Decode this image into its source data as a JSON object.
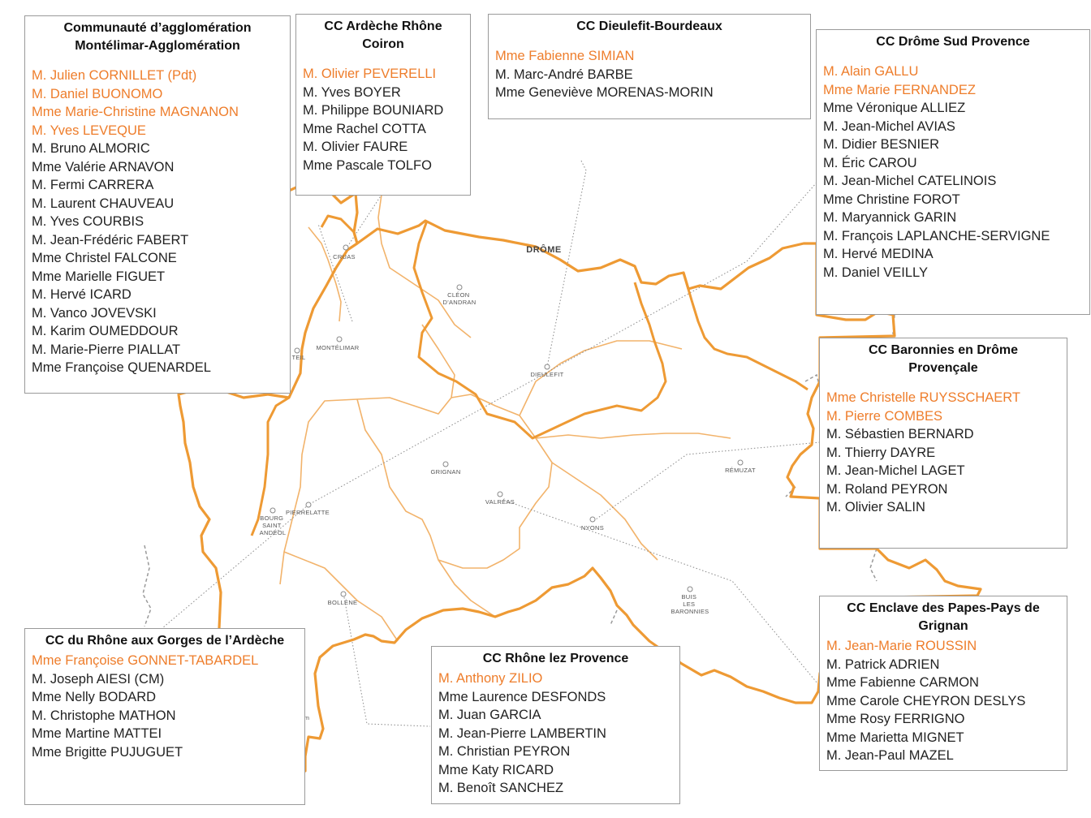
{
  "colors": {
    "border_orange": "#ee9a34",
    "internal_orange": "#f2b36b",
    "lead_text": "#ee7d2b",
    "dotted_gray": "#9a9a9a"
  },
  "map": {
    "region_label": "DRÔME",
    "towns": [
      {
        "name": "CRUAS"
      },
      {
        "name": "CLÉON D'ANDRAN"
      },
      {
        "name": "MONTÉLIMAR"
      },
      {
        "name": "TEIL"
      },
      {
        "name": "DIEULEFIT"
      },
      {
        "name": "GRIGNAN"
      },
      {
        "name": "RÉMUZAT"
      },
      {
        "name": "VALRÉAS"
      },
      {
        "name": "PIERRELATTE"
      },
      {
        "name": "BOURG SAINT ANDÉOL"
      },
      {
        "name": "NYONS"
      },
      {
        "name": "BOLLÈNE"
      },
      {
        "name": "BUIS LES BARONNIES"
      }
    ],
    "scale_unit": "km"
  },
  "boxes": [
    {
      "id": "montelimar",
      "title": "Communauté d’agglomération Montélimar-Agglomération",
      "members": [
        {
          "name": "M. Julien CORNILLET (Pdt)",
          "lead": true
        },
        {
          "name": "M. Daniel BUONOMO",
          "lead": true
        },
        {
          "name": "Mme Marie-Christine MAGNANON",
          "lead": true
        },
        {
          "name": "M. Yves LEVEQUE",
          "lead": true
        },
        {
          "name": "M. Bruno ALMORIC",
          "lead": false
        },
        {
          "name": "Mme Valérie ARNAVON",
          "lead": false
        },
        {
          "name": "M. Fermi CARRERA",
          "lead": false
        },
        {
          "name": "M. Laurent CHAUVEAU",
          "lead": false
        },
        {
          "name": "M. Yves COURBIS",
          "lead": false
        },
        {
          "name": "M. Jean-Frédéric FABERT",
          "lead": false
        },
        {
          "name": "Mme Christel FALCONE",
          "lead": false
        },
        {
          "name": "Mme Marielle FIGUET",
          "lead": false
        },
        {
          "name": "M. Hervé ICARD",
          "lead": false
        },
        {
          "name": "M. Vanco JOVEVSKI",
          "lead": false
        },
        {
          "name": "M. Karim OUMEDDOUR",
          "lead": false
        },
        {
          "name": "M. Marie-Pierre PIALLAT",
          "lead": false
        },
        {
          "name": "Mme Françoise QUENARDEL",
          "lead": false
        }
      ]
    },
    {
      "id": "ardeche-rhone-coiron",
      "title": "CC Ardèche Rhône Coiron",
      "members": [
        {
          "name": "M. Olivier PEVERELLI",
          "lead": true
        },
        {
          "name": "M. Yves BOYER",
          "lead": false
        },
        {
          "name": "M. Philippe BOUNIARD",
          "lead": false
        },
        {
          "name": "Mme Rachel COTTA",
          "lead": false
        },
        {
          "name": "M. Olivier FAURE",
          "lead": false
        },
        {
          "name": "Mme Pascale TOLFO",
          "lead": false
        }
      ]
    },
    {
      "id": "dieulefit-bourdeaux",
      "title": "CC Dieulefit-Bourdeaux",
      "members": [
        {
          "name": "Mme Fabienne SIMIAN",
          "lead": true
        },
        {
          "name": "M. Marc-André BARBE",
          "lead": false
        },
        {
          "name": "Mme Geneviève MORENAS-MORIN",
          "lead": false
        }
      ]
    },
    {
      "id": "drome-sud-provence",
      "title": "CC Drôme Sud Provence",
      "members": [
        {
          "name": "M. Alain GALLU",
          "lead": true
        },
        {
          "name": "Mme Marie FERNANDEZ",
          "lead": true
        },
        {
          "name": "Mme Véronique ALLIEZ",
          "lead": false
        },
        {
          "name": "M. Jean-Michel AVIAS",
          "lead": false
        },
        {
          "name": "M. Didier BESNIER",
          "lead": false
        },
        {
          "name": "M. Éric CAROU",
          "lead": false
        },
        {
          "name": "M. Jean-Michel CATELINOIS",
          "lead": false
        },
        {
          "name": "Mme Christine FOROT",
          "lead": false
        },
        {
          "name": "M. Maryannick GARIN",
          "lead": false
        },
        {
          "name": "M. François LAPLANCHE-SERVIGNE",
          "lead": false
        },
        {
          "name": "M. Hervé MEDINA",
          "lead": false
        },
        {
          "name": "M. Daniel VEILLY",
          "lead": false
        }
      ]
    },
    {
      "id": "baronnies",
      "title": "CC Baronnies en Drôme Provençale",
      "members": [
        {
          "name": "Mme Christelle RUYSSCHAERT",
          "lead": true
        },
        {
          "name": "M. Pierre COMBES",
          "lead": true
        },
        {
          "name": "M. Sébastien BERNARD",
          "lead": false
        },
        {
          "name": "M. Thierry DAYRE",
          "lead": false
        },
        {
          "name": "M. Jean-Michel LAGET",
          "lead": false
        },
        {
          "name": "M. Roland PEYRON",
          "lead": false
        },
        {
          "name": "M. Olivier SALIN",
          "lead": false
        }
      ]
    },
    {
      "id": "enclave-papes",
      "title": "CC Enclave des Papes-Pays de Grignan",
      "members": [
        {
          "name": "M. Jean-Marie ROUSSIN",
          "lead": true
        },
        {
          "name": "M. Patrick ADRIEN",
          "lead": false
        },
        {
          "name": "Mme Fabienne CARMON",
          "lead": false
        },
        {
          "name": "Mme Carole CHEYRON DESLYS",
          "lead": false
        },
        {
          "name": "Mme Rosy FERRIGNO",
          "lead": false
        },
        {
          "name": "Mme Marietta MIGNET",
          "lead": false
        },
        {
          "name": "M. Jean-Paul MAZEL",
          "lead": false
        }
      ]
    },
    {
      "id": "rhone-lez-provence",
      "title": "CC Rhône lez Provence",
      "members": [
        {
          "name": "M. Anthony ZILIO",
          "lead": true
        },
        {
          "name": "Mme Laurence DESFONDS",
          "lead": false
        },
        {
          "name": "M. Juan GARCIA",
          "lead": false
        },
        {
          "name": "M. Jean-Pierre LAMBERTIN",
          "lead": false
        },
        {
          "name": "M. Christian PEYRON",
          "lead": false
        },
        {
          "name": "Mme Katy RICARD",
          "lead": false
        },
        {
          "name": "M. Benoît SANCHEZ",
          "lead": false
        }
      ]
    },
    {
      "id": "rhone-gorges-ardeche",
      "title": "CC du Rhône aux Gorges de l’Ardèche",
      "members": [
        {
          "name": "Mme Françoise GONNET-TABARDEL",
          "lead": true
        },
        {
          "name": "M. Joseph AIESI (CM)",
          "lead": false
        },
        {
          "name": "Mme Nelly BODARD",
          "lead": false
        },
        {
          "name": "M. Christophe MATHON",
          "lead": false
        },
        {
          "name": "Mme Martine MATTEI",
          "lead": false
        },
        {
          "name": "Mme Brigitte PUJUGUET",
          "lead": false
        }
      ]
    }
  ]
}
